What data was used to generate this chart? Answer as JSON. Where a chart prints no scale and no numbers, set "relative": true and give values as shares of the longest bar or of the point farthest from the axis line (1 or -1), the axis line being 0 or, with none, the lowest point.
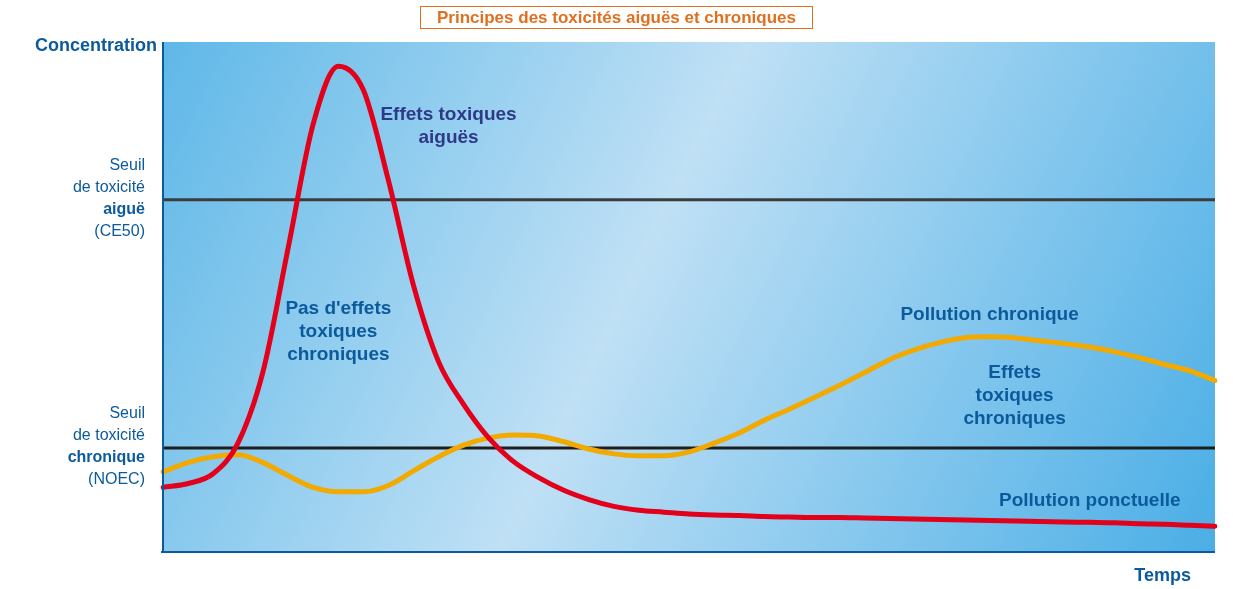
{
  "chart_data": {
    "type": "line",
    "relative": true,
    "title": "Principes des toxicités aiguës et chroniques",
    "xlabel": "Temps",
    "ylabel": "Concentration",
    "categories": [
      null,
      null,
      null,
      null,
      null,
      null,
      null,
      null,
      null,
      null,
      null,
      null,
      null,
      null,
      null,
      null,
      null,
      null,
      null,
      null,
      null,
      null,
      null,
      null,
      null,
      null,
      null,
      null,
      null,
      null,
      null,
      null,
      null,
      null,
      null,
      null,
      null,
      null,
      null,
      null,
      null,
      null,
      null
    ],
    "series": [
      {
        "name": "Pollution ponctuelle",
        "color": "#e2001a",
        "values": [
          0.133,
          0.141,
          0.161,
          0.225,
          0.373,
          0.627,
          0.882,
          1,
          0.951,
          0.765,
          0.549,
          0.392,
          0.304,
          0.235,
          0.186,
          0.153,
          0.127,
          0.108,
          0.094,
          0.086,
          0.082,
          0.078,
          0.076,
          0.075,
          0.073,
          0.072,
          0.071,
          0.071,
          0.07,
          0.069,
          0.068,
          0.067,
          0.066,
          0.065,
          0.064,
          0.063,
          0.062,
          0.061,
          0.06,
          0.058,
          0.057,
          0.055,
          0.053
        ]
      },
      {
        "name": "Pollution chronique",
        "color": "#f2a900",
        "values": [
          0.165,
          0.184,
          0.196,
          0.2,
          0.184,
          0.157,
          0.133,
          0.124,
          0.124,
          0.137,
          0.167,
          0.196,
          0.22,
          0.235,
          0.241,
          0.239,
          0.227,
          0.212,
          0.202,
          0.198,
          0.198,
          0.206,
          0.224,
          0.245,
          0.271,
          0.294,
          0.318,
          0.343,
          0.369,
          0.396,
          0.416,
          0.431,
          0.441,
          0.443,
          0.441,
          0.435,
          0.429,
          0.422,
          0.412,
          0.4,
          0.386,
          0.373,
          0.353
        ]
      }
    ],
    "ref_lines": [
      {
        "axis": "y",
        "value": 0.725,
        "label": "Seuil de toxicité aiguë (CE50)",
        "color": "#3c3c3c"
      },
      {
        "axis": "y",
        "value": 0.214,
        "label": "Seuil de toxicité chronique (NOEC)",
        "color": "#1e1e1e"
      }
    ],
    "annotations": [
      "Effets toxiques aiguës",
      "Pas d'effets toxiques chroniques",
      "Effets toxiques chroniques"
    ],
    "legend": false,
    "marker": "none",
    "line_style": "solid"
  }
}
